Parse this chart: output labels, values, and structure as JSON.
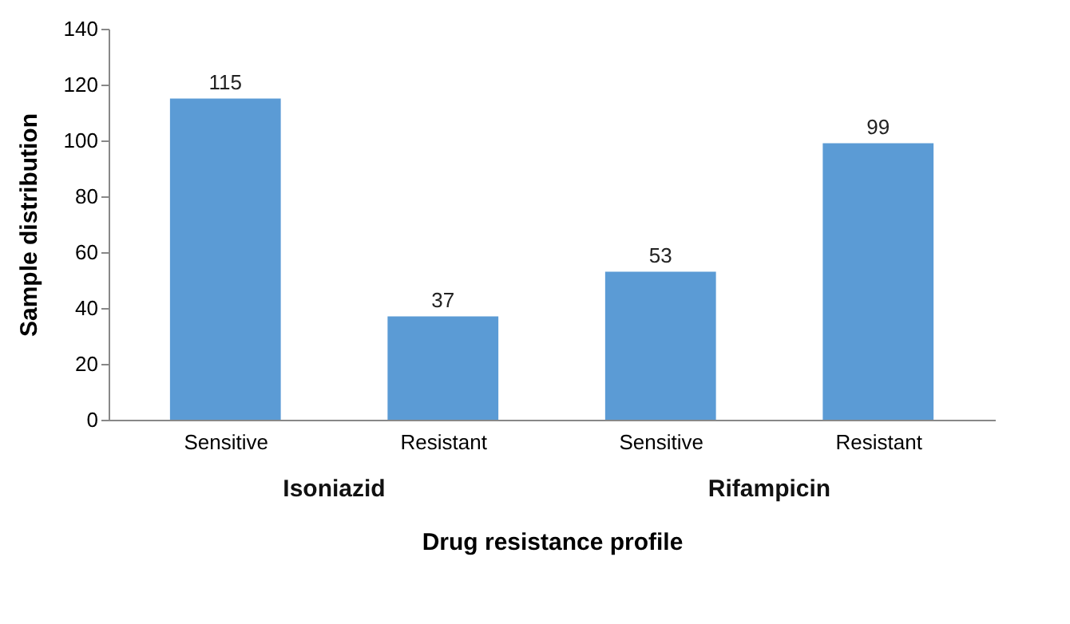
{
  "chart_data": {
    "type": "bar",
    "categories": [
      "Sensitive",
      "Resistant",
      "Sensitive",
      "Resistant"
    ],
    "values": [
      115,
      37,
      53,
      99
    ],
    "color": "#5b9bd5",
    "ylabel": "Sample distribution",
    "xlabel": "Drug resistance profile",
    "annotations": [
      "Isoniazid",
      "Rifampicin"
    ],
    "ylim": [
      0,
      140
    ],
    "yticks": [
      0,
      20,
      40,
      60,
      80,
      100,
      120,
      140
    ],
    "data_labels": true,
    "grid": false
  }
}
